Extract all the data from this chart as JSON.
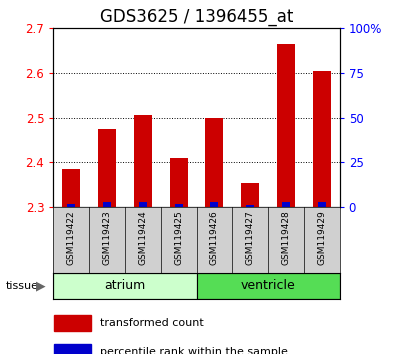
{
  "title": "GDS3625 / 1396455_at",
  "samples": [
    "GSM119422",
    "GSM119423",
    "GSM119424",
    "GSM119425",
    "GSM119426",
    "GSM119427",
    "GSM119428",
    "GSM119429"
  ],
  "red_values": [
    2.385,
    2.475,
    2.505,
    2.41,
    2.5,
    2.355,
    2.665,
    2.605
  ],
  "blue_percentiles": [
    2,
    3,
    3,
    2,
    3,
    1,
    3,
    3
  ],
  "y_min": 2.3,
  "y_max": 2.7,
  "y_ticks": [
    2.3,
    2.4,
    2.5,
    2.6,
    2.7
  ],
  "right_y_ticks": [
    0,
    25,
    50,
    75,
    100
  ],
  "right_y_labels": [
    "0",
    "25",
    "50",
    "75",
    "100%"
  ],
  "tissue_groups": [
    {
      "label": "atrium",
      "start": 0,
      "end": 4,
      "color": "#ccffcc"
    },
    {
      "label": "ventricle",
      "start": 4,
      "end": 8,
      "color": "#55dd55"
    }
  ],
  "bar_width": 0.5,
  "red_color": "#cc0000",
  "blue_color": "#0000cc",
  "background_color": "#ffffff",
  "label_bg_color": "#d0d0d0",
  "title_fontsize": 12,
  "axis_fontsize": 8.5,
  "legend_fontsize": 8,
  "sample_fontsize": 6.5
}
